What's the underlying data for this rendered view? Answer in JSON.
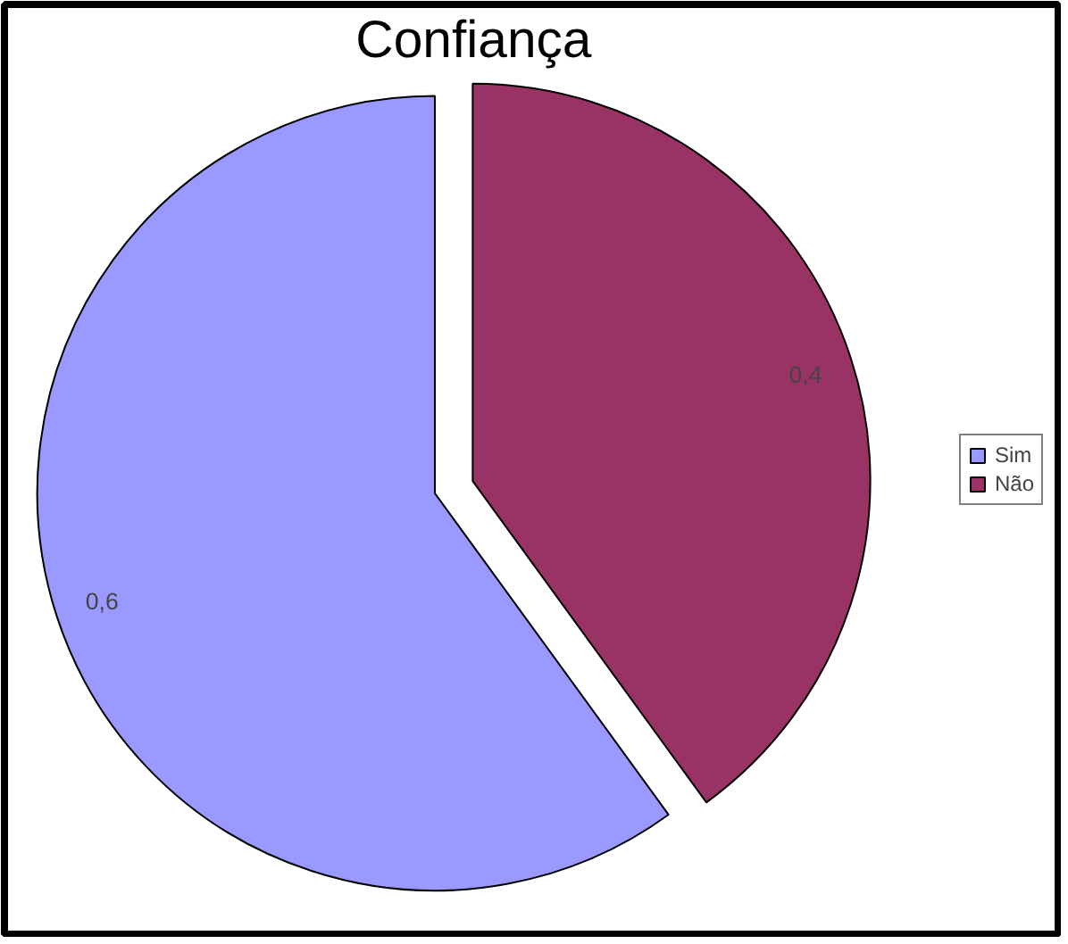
{
  "chart_data": {
    "type": "pie",
    "title": "Confiança",
    "categories": [
      "Sim",
      "Não"
    ],
    "values": [
      0.6,
      0.4
    ],
    "colors": [
      "#9999ff",
      "#993366"
    ],
    "value_labels": [
      "0,6",
      "0,4"
    ],
    "legend": "right"
  }
}
